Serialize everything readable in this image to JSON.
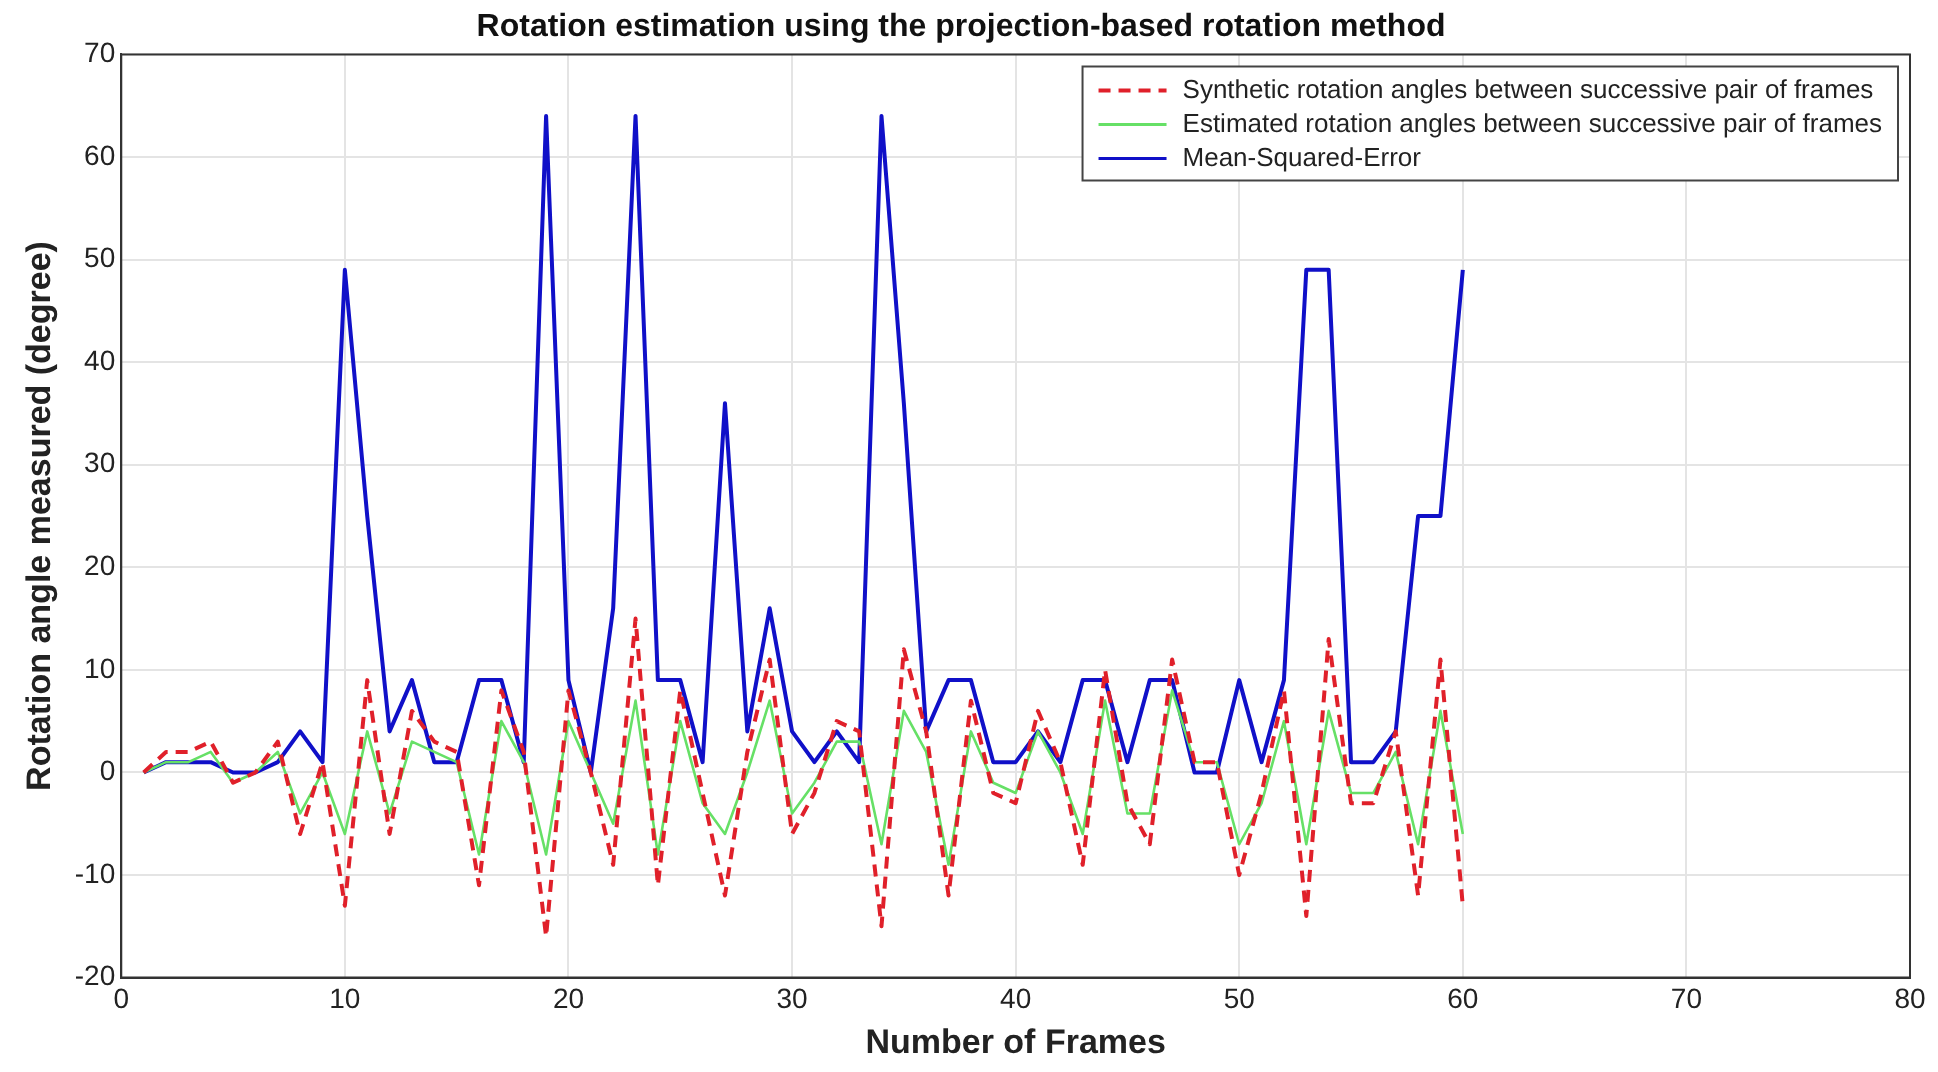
{
  "chart_data": {
    "type": "line",
    "title": "Rotation estimation using the projection-based rotation method",
    "xlabel": "Number of Frames",
    "ylabel": "Rotation angle measured (degree)",
    "x": [
      1,
      2,
      3,
      4,
      5,
      6,
      7,
      8,
      9,
      10,
      11,
      12,
      13,
      14,
      15,
      16,
      17,
      18,
      19,
      20,
      21,
      22,
      23,
      24,
      25,
      26,
      27,
      28,
      29,
      30,
      31,
      32,
      33,
      34,
      35,
      36,
      37,
      38,
      39,
      40,
      41,
      42,
      43,
      44,
      45,
      46,
      47,
      48,
      49,
      50,
      51,
      52,
      53,
      54,
      55,
      56,
      57,
      58,
      59,
      60
    ],
    "xlim": [
      0,
      80
    ],
    "xticks": [
      0,
      10,
      20,
      30,
      40,
      50,
      60,
      70,
      80
    ],
    "ylim": [
      -20,
      70
    ],
    "yticks": [
      -20,
      -10,
      0,
      10,
      20,
      30,
      40,
      50,
      60,
      70
    ],
    "grid": true,
    "legend": "top right",
    "marker": "none",
    "series": [
      {
        "name": "Synthetic rotation angles between successive pair of frames",
        "color": "#e0202a",
        "line_style": "dashed",
        "values": [
          0,
          2,
          2,
          3,
          -1,
          0,
          3,
          -6,
          1,
          -13,
          9,
          -6,
          6,
          3,
          2,
          -11,
          8,
          2,
          -16,
          8,
          0,
          -9,
          15,
          -11,
          8,
          -2,
          -12,
          2,
          11,
          -6,
          -2,
          5,
          4,
          -15,
          12,
          4,
          -12,
          7,
          -2,
          -3,
          6,
          1,
          -9,
          10,
          -3,
          -7,
          11,
          1,
          1,
          -10,
          -2,
          8,
          -14,
          13,
          -3,
          -3,
          4,
          -12,
          11,
          -13
        ]
      },
      {
        "name": "Estimated rotation angles between successive pair of frames",
        "color": "#66e066",
        "line_style": "solid",
        "values": [
          0,
          1,
          1,
          2,
          -1,
          0,
          2,
          -4,
          0,
          -6,
          4,
          -4,
          3,
          2,
          1,
          -8,
          5,
          1,
          -8,
          5,
          0,
          -5,
          7,
          -8,
          5,
          -3,
          -6,
          0,
          7,
          -4,
          -1,
          3,
          3,
          -7,
          6,
          2,
          -9,
          4,
          -1,
          -2,
          4,
          0,
          -6,
          7,
          -4,
          -4,
          8,
          1,
          1,
          -7,
          -3,
          5,
          -7,
          6,
          -2,
          -2,
          2,
          -7,
          6,
          -6
        ]
      },
      {
        "name": "Mean-Squared-Error",
        "color": "#1010c8",
        "line_style": "solid",
        "values": [
          0,
          1,
          1,
          1,
          0,
          0,
          1,
          4,
          1,
          49,
          25,
          4,
          9,
          1,
          1,
          9,
          9,
          1,
          64,
          9,
          0,
          16,
          64,
          9,
          9,
          1,
          36,
          4,
          16,
          4,
          1,
          4,
          1,
          64,
          36,
          4,
          9,
          9,
          1,
          1,
          4,
          1,
          9,
          9,
          1,
          9,
          9,
          0,
          0,
          9,
          1,
          9,
          49,
          49,
          1,
          1,
          4,
          25,
          25,
          49
        ]
      }
    ]
  }
}
